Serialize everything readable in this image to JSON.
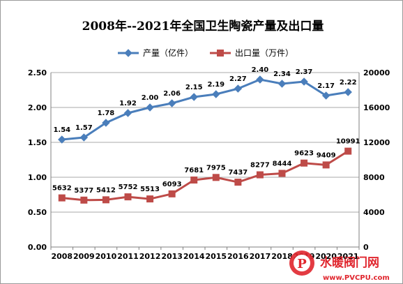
{
  "chart_data": {
    "type": "line",
    "title": "2008年--2021年全国卫生陶瓷产量及出口量",
    "categories": [
      "2008",
      "2009",
      "2010",
      "2011",
      "2012",
      "2013",
      "2014",
      "2015",
      "2016",
      "2017",
      "2018",
      "2019",
      "2020",
      "2021"
    ],
    "series": [
      {
        "name": "产量（亿件）",
        "axis": "left",
        "color": "#4a7ebb",
        "marker": "diamond",
        "values": [
          1.54,
          1.57,
          1.78,
          1.92,
          2.0,
          2.06,
          2.15,
          2.19,
          2.27,
          2.4,
          2.34,
          2.37,
          2.17,
          2.22
        ],
        "labels": [
          "1.54",
          "1.57",
          "1.78",
          "1.92",
          "2.00",
          "2.06",
          "2.15",
          "2.19",
          "2.27",
          "2.40",
          "2.34",
          "2.37",
          "2.17",
          "2.22"
        ]
      },
      {
        "name": "出口量（万件）",
        "axis": "right",
        "color": "#be4b48",
        "marker": "square",
        "values": [
          5632,
          5377,
          5412,
          5752,
          5513,
          6093,
          7681,
          7975,
          7437,
          8277,
          8444,
          9623,
          9409,
          10991
        ],
        "labels": [
          "5632",
          "5377",
          "5412",
          "5752",
          "5513",
          "6093",
          "7681",
          "7975",
          "7437",
          "8277",
          "8444",
          "9623",
          "9409",
          "10991"
        ]
      }
    ],
    "y_left": {
      "range": [
        0,
        2.5
      ],
      "ticks": [
        "0.00",
        "0.50",
        "1.00",
        "1.50",
        "2.00",
        "2.50"
      ]
    },
    "y_right": {
      "range": [
        0,
        20000
      ],
      "ticks": [
        "0",
        "4000",
        "8000",
        "12000",
        "16000",
        "20000"
      ]
    },
    "grid": true,
    "legend": "top-center"
  },
  "watermark": {
    "name": "水暖阀门网",
    "url": "www.PVCPU.com"
  }
}
